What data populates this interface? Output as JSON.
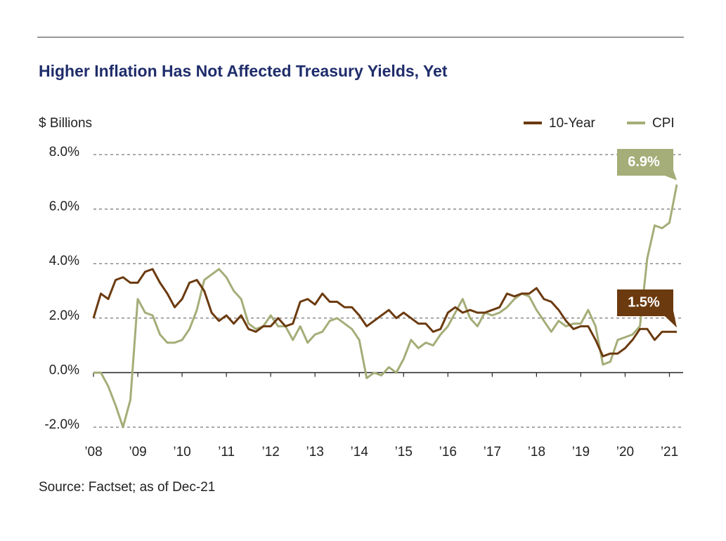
{
  "chart_data": {
    "type": "line",
    "title": "Higher Inflation Has Not Affected Treasury Yields, Yet",
    "ylabel": "$ Billions",
    "source": "Source: Factset; as of Dec-21",
    "categories": [
      "’08",
      null,
      null,
      null,
      null,
      null,
      "’09",
      null,
      null,
      null,
      null,
      null,
      "’10",
      null,
      null,
      null,
      null,
      null,
      "’11",
      null,
      null,
      null,
      null,
      null,
      "’12",
      null,
      null,
      null,
      null,
      null,
      "’13",
      null,
      null,
      null,
      null,
      null,
      "’14",
      null,
      null,
      null,
      null,
      null,
      "’15",
      null,
      null,
      null,
      null,
      null,
      "’16",
      null,
      null,
      null,
      null,
      null,
      "’17",
      null,
      null,
      null,
      null,
      null,
      "’18",
      null,
      null,
      null,
      null,
      null,
      "’19",
      null,
      null,
      null,
      null,
      null,
      "’20",
      null,
      null,
      null,
      null,
      null,
      "’21",
      null
    ],
    "series": [
      {
        "name": "10-Year",
        "color": "#6b3a0f",
        "end_label": "1.5%",
        "values": [
          2.0,
          2.9,
          2.7,
          3.4,
          3.5,
          3.3,
          3.3,
          3.7,
          3.8,
          3.3,
          2.9,
          2.4,
          2.7,
          3.3,
          3.4,
          3.0,
          2.2,
          1.9,
          2.1,
          1.8,
          2.1,
          1.6,
          1.5,
          1.7,
          1.7,
          2.0,
          1.7,
          1.8,
          2.6,
          2.7,
          2.5,
          2.9,
          2.6,
          2.6,
          2.4,
          2.4,
          2.1,
          1.7,
          1.9,
          2.1,
          2.3,
          2.0,
          2.2,
          2.0,
          1.8,
          1.8,
          1.5,
          1.6,
          2.2,
          2.4,
          2.2,
          2.3,
          2.2,
          2.2,
          2.3,
          2.4,
          2.9,
          2.8,
          2.9,
          2.9,
          3.1,
          2.7,
          2.6,
          2.3,
          1.9,
          1.6,
          1.7,
          1.7,
          1.2,
          0.6,
          0.7,
          0.7,
          0.9,
          1.2,
          1.6,
          1.6,
          1.2,
          1.5,
          1.5,
          1.5
        ]
      },
      {
        "name": "CPI",
        "color": "#a5ad78",
        "end_label": "6.9%",
        "values": [
          0.0,
          0.0,
          -0.5,
          -1.2,
          -2.0,
          -1.0,
          2.7,
          2.2,
          2.1,
          1.4,
          1.1,
          1.1,
          1.2,
          1.6,
          2.3,
          3.4,
          3.6,
          3.8,
          3.5,
          3.0,
          2.7,
          1.8,
          1.6,
          1.7,
          2.1,
          1.7,
          1.7,
          1.2,
          1.7,
          1.1,
          1.4,
          1.5,
          1.9,
          2.0,
          1.8,
          1.6,
          1.2,
          -0.2,
          0.0,
          -0.1,
          0.2,
          0.0,
          0.5,
          1.2,
          0.9,
          1.1,
          1.0,
          1.4,
          1.7,
          2.2,
          2.7,
          2.0,
          1.7,
          2.2,
          2.1,
          2.2,
          2.4,
          2.7,
          2.9,
          2.8,
          2.3,
          1.9,
          1.5,
          1.9,
          1.7,
          1.8,
          1.8,
          2.3,
          1.7,
          0.3,
          0.4,
          1.2,
          1.3,
          1.4,
          1.7,
          4.2,
          5.4,
          5.3,
          5.5,
          6.9
        ]
      }
    ],
    "ylim": [
      -2,
      8
    ],
    "yticks": [
      {
        "value": -2,
        "label": "-2.0%"
      },
      {
        "value": 0,
        "label": "0.0%"
      },
      {
        "value": 2,
        "label": "2.0%"
      },
      {
        "value": 4,
        "label": "4.0%"
      },
      {
        "value": 6,
        "label": "6.0%"
      },
      {
        "value": 8,
        "label": "8.0%"
      }
    ],
    "grid": true,
    "legend": "top-right"
  }
}
